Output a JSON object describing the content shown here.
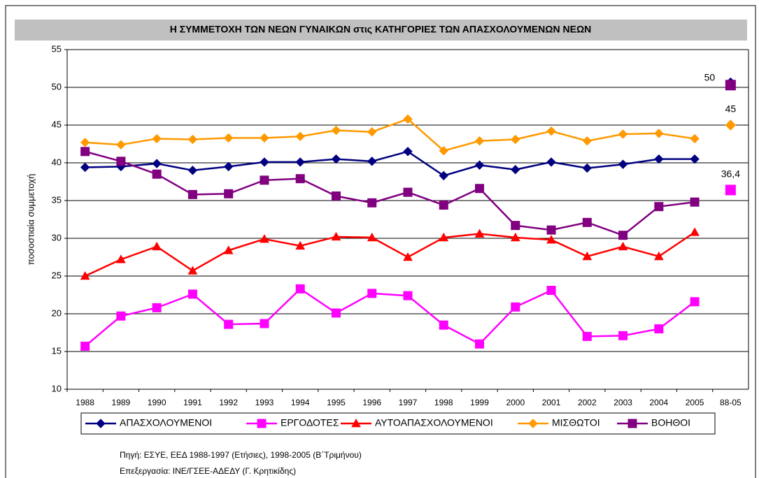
{
  "chart_data": {
    "type": "line",
    "title": "Η ΣΥΜΜΕΤΟΧΗ ΤΩΝ ΝΕΩΝ ΓΥΝΑΙΚΩΝ στις ΚΑΤΗΓΟΡΙΕΣ ΤΩΝ ΑΠΑΣΧΟΛΟΥΜΕΝΩΝ ΝΕΩΝ",
    "y_label": "ποσοστιαία συμμετοχή",
    "categories": [
      "1988",
      "1989",
      "1990",
      "1991",
      "1992",
      "1993",
      "1994",
      "1995",
      "1996",
      "1997",
      "1998",
      "1999",
      "2000",
      "2001",
      "2002",
      "2003",
      "2004",
      "2005",
      "88-05"
    ],
    "separate_last": true,
    "series": [
      {
        "name": "ΑΠΑΣΧΟΛΟΥΜΕΝΟΙ",
        "color": "#000080",
        "marker": "diamond",
        "values": [
          39.4,
          39.5,
          39.9,
          39.0,
          39.5,
          40.1,
          40.1,
          40.5,
          40.2,
          41.5,
          38.3,
          39.7,
          39.1,
          40.1,
          39.3,
          39.8,
          40.5,
          40.5,
          50.6
        ]
      },
      {
        "name": "ΕΡΓΟΔΟΤΕΣ",
        "color": "#ff00ff",
        "marker": "square",
        "values": [
          15.7,
          19.7,
          20.8,
          22.6,
          18.6,
          18.7,
          23.3,
          20.1,
          22.7,
          22.4,
          18.5,
          16.0,
          20.9,
          23.1,
          17.0,
          17.1,
          18.0,
          21.6,
          36.4
        ],
        "value_labels": [
          null,
          null,
          null,
          null,
          null,
          null,
          null,
          null,
          null,
          null,
          null,
          null,
          null,
          null,
          null,
          null,
          null,
          null,
          "36,4"
        ]
      },
      {
        "name": "ΑΥΤΟΑΠΑΣΧΟΛΟΥΜΕΝΟΙ",
        "color": "#ff0000",
        "marker": "triangle",
        "values": [
          25.0,
          27.2,
          28.9,
          25.7,
          28.4,
          29.9,
          29.0,
          30.2,
          30.1,
          27.5,
          30.1,
          30.6,
          30.1,
          29.8,
          27.6,
          28.9,
          27.6,
          30.8,
          null
        ]
      },
      {
        "name": "ΜΙΣΘΩΤΟΙ",
        "color": "#ff9900",
        "marker": "diamond",
        "values": [
          42.7,
          42.4,
          43.2,
          43.1,
          43.3,
          43.3,
          43.5,
          44.3,
          44.1,
          45.8,
          41.6,
          42.9,
          43.1,
          44.2,
          42.9,
          43.8,
          43.9,
          43.2,
          45.0
        ],
        "value_labels": [
          null,
          null,
          null,
          null,
          null,
          null,
          null,
          null,
          null,
          null,
          null,
          null,
          null,
          null,
          null,
          null,
          null,
          null,
          "45"
        ]
      },
      {
        "name": "ΒΟΗΘΟΙ",
        "color": "#800080",
        "marker": "square",
        "values": [
          41.5,
          40.2,
          38.5,
          35.8,
          35.9,
          37.7,
          37.9,
          35.6,
          34.7,
          36.1,
          34.4,
          36.6,
          31.7,
          31.1,
          32.1,
          30.4,
          34.2,
          34.8,
          50.3
        ],
        "value_labels": [
          null,
          null,
          null,
          null,
          null,
          null,
          null,
          null,
          null,
          null,
          null,
          null,
          null,
          null,
          null,
          null,
          null,
          null,
          "50"
        ]
      }
    ],
    "ylim": [
      10,
      55
    ],
    "yticks": [
      10,
      15,
      20,
      25,
      30,
      35,
      40,
      45,
      50,
      55
    ],
    "grid": true,
    "legend": "bottom",
    "notes": [
      "Πηγή: ΕΣΥΕ, ΕΕΔ 1988-1997 (Ετήσιες), 1998-2005 (Β΄Τριμήνου)",
      "Επεξεργασία: ΙΝΕ/ΓΣΕΕ-ΑΔΕΔΥ (Γ. Κρητικίδης)"
    ]
  }
}
